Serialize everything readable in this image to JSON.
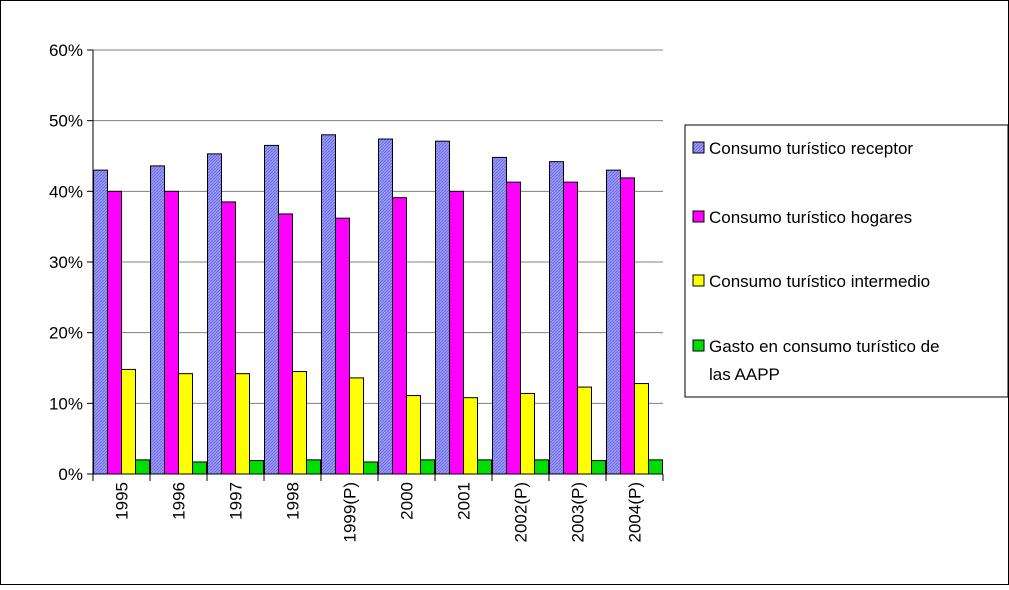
{
  "chart_data": {
    "type": "bar",
    "categories": [
      "1995",
      "1996",
      "1997",
      "1998",
      "1999(P)",
      "2000",
      "2001",
      "2002(P)",
      "2003(P)",
      "2004(P)"
    ],
    "series": [
      {
        "name": "Consumo turístico receptor",
        "color": "#9999ff",
        "values": [
          43.0,
          43.6,
          45.3,
          46.5,
          48.0,
          47.4,
          47.1,
          44.8,
          44.2,
          43.0
        ]
      },
      {
        "name": "Consumo turístico hogares",
        "color": "#ff00ff",
        "values": [
          40.0,
          40.0,
          38.5,
          36.8,
          36.2,
          39.1,
          40.0,
          41.3,
          41.3,
          41.9
        ]
      },
      {
        "name": "Consumo turístico intermedio",
        "color": "#ffff00",
        "values": [
          14.8,
          14.2,
          14.2,
          14.5,
          13.6,
          11.1,
          10.8,
          11.4,
          12.3,
          12.8
        ]
      },
      {
        "name": "Gasto en consumo turístico de las AAPP",
        "color": "#00dd00",
        "values": [
          2.0,
          1.7,
          1.9,
          2.0,
          1.7,
          2.0,
          2.0,
          2.0,
          1.9,
          2.0
        ]
      }
    ],
    "y_ticks": [
      "0%",
      "10%",
      "20%",
      "30%",
      "40%",
      "50%",
      "60%"
    ],
    "ylim": [
      0,
      60
    ],
    "grid": true,
    "legend_position": "right"
  }
}
